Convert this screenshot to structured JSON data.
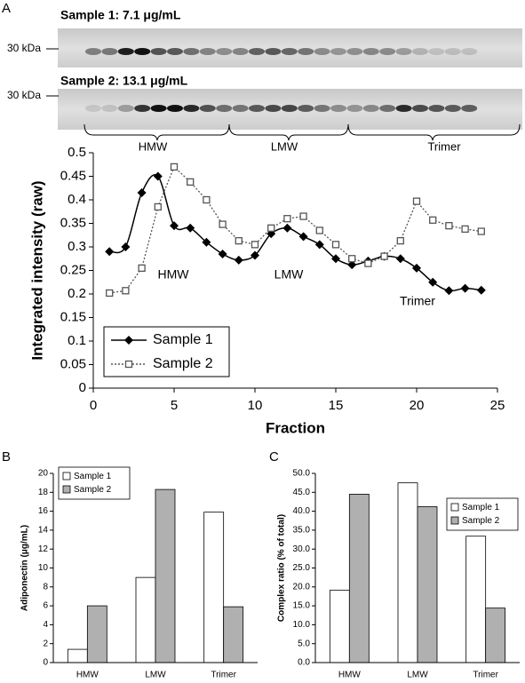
{
  "panel_labels": [
    "A",
    "B",
    "C"
  ],
  "gel": {
    "lanes": [
      {
        "title": "Sample 1: 7.1 μg/mL",
        "marker": "30 kDa"
      },
      {
        "title": "Sample 2: 13.1 μg/mL",
        "marker": "30 kDa"
      }
    ],
    "brackets": [
      "HMW",
      "LMW",
      "Trimer"
    ]
  },
  "chart_data": [
    {
      "type": "line",
      "x_label": "Fraction",
      "y_label": "Integrated intensity (raw)",
      "annotations": [
        "HMW",
        "LMW",
        "Trimer"
      ],
      "x": [
        1,
        2,
        3,
        4,
        5,
        6,
        7,
        8,
        9,
        10,
        11,
        12,
        13,
        14,
        15,
        16,
        17,
        18,
        19,
        20,
        21,
        22,
        23,
        24
      ],
      "series": [
        {
          "name": "Sample 1",
          "color": "#000000",
          "marker": "diamond",
          "line_style": "solid",
          "smooth": true,
          "values": [
            0.29,
            0.3,
            0.415,
            0.45,
            0.345,
            0.34,
            0.31,
            0.285,
            0.272,
            0.282,
            0.328,
            0.34,
            0.322,
            0.305,
            0.275,
            0.262,
            0.27,
            0.28,
            0.275,
            0.255,
            0.225,
            0.207,
            0.212,
            0.208
          ]
        },
        {
          "name": "Sample 2",
          "color": "#555555",
          "marker": "square",
          "line_style": "dotted",
          "smooth": false,
          "values": [
            0.202,
            0.207,
            0.255,
            0.385,
            0.47,
            0.438,
            0.4,
            0.348,
            0.313,
            0.305,
            0.34,
            0.36,
            0.365,
            0.335,
            0.305,
            0.275,
            0.265,
            0.28,
            0.313,
            0.397,
            0.357,
            0.345,
            0.338,
            0.333
          ]
        }
      ],
      "xlim": [
        0,
        25
      ],
      "xticks": [
        0,
        5,
        10,
        15,
        20,
        25
      ],
      "ylim": [
        0,
        0.5
      ],
      "yticks": [
        0,
        0.05,
        0.1,
        0.15,
        0.2,
        0.25,
        0.3,
        0.35,
        0.4,
        0.45,
        0.5
      ],
      "legend": "lower left"
    },
    {
      "type": "bar",
      "y_label": "Adiponectin (μg/mL)",
      "categories": [
        "HMW",
        "LMW",
        "Trimer"
      ],
      "series": [
        {
          "name": "Sample 1",
          "color": "#ffffff",
          "values": [
            1.4,
            9.0,
            15.9
          ]
        },
        {
          "name": "Sample 2",
          "color": "#b0b0b0",
          "values": [
            6.0,
            18.3,
            5.9
          ]
        }
      ],
      "ylim": [
        0,
        20
      ],
      "yticks": [
        0,
        2,
        4,
        6,
        8,
        10,
        12,
        14,
        16,
        18,
        20
      ],
      "legend": "upper left"
    },
    {
      "type": "bar",
      "y_label": "Complex ratio (% of total)",
      "categories": [
        "HMW",
        "LMW",
        "Trimer"
      ],
      "series": [
        {
          "name": "Sample 1",
          "color": "#ffffff",
          "values": [
            19.1,
            47.5,
            33.4
          ]
        },
        {
          "name": "Sample 2",
          "color": "#b0b0b0",
          "values": [
            44.5,
            41.2,
            14.4
          ]
        }
      ],
      "ylim": [
        0,
        50
      ],
      "yticks": [
        {
          "value": 0,
          "label": "0.0"
        },
        {
          "value": 5,
          "label": "5.0"
        },
        {
          "value": 10,
          "label": "10.0"
        },
        {
          "value": 15,
          "label": "15.0"
        },
        {
          "value": 20,
          "label": "20.0"
        },
        {
          "value": 25,
          "label": "25.0"
        },
        {
          "value": 30,
          "label": "30.0"
        },
        {
          "value": 35,
          "label": "35.0"
        },
        {
          "value": 40,
          "label": "40.0"
        },
        {
          "value": 45,
          "label": "45.0"
        },
        {
          "value": 50,
          "label": "50.0"
        }
      ],
      "legend": "upper right"
    }
  ]
}
